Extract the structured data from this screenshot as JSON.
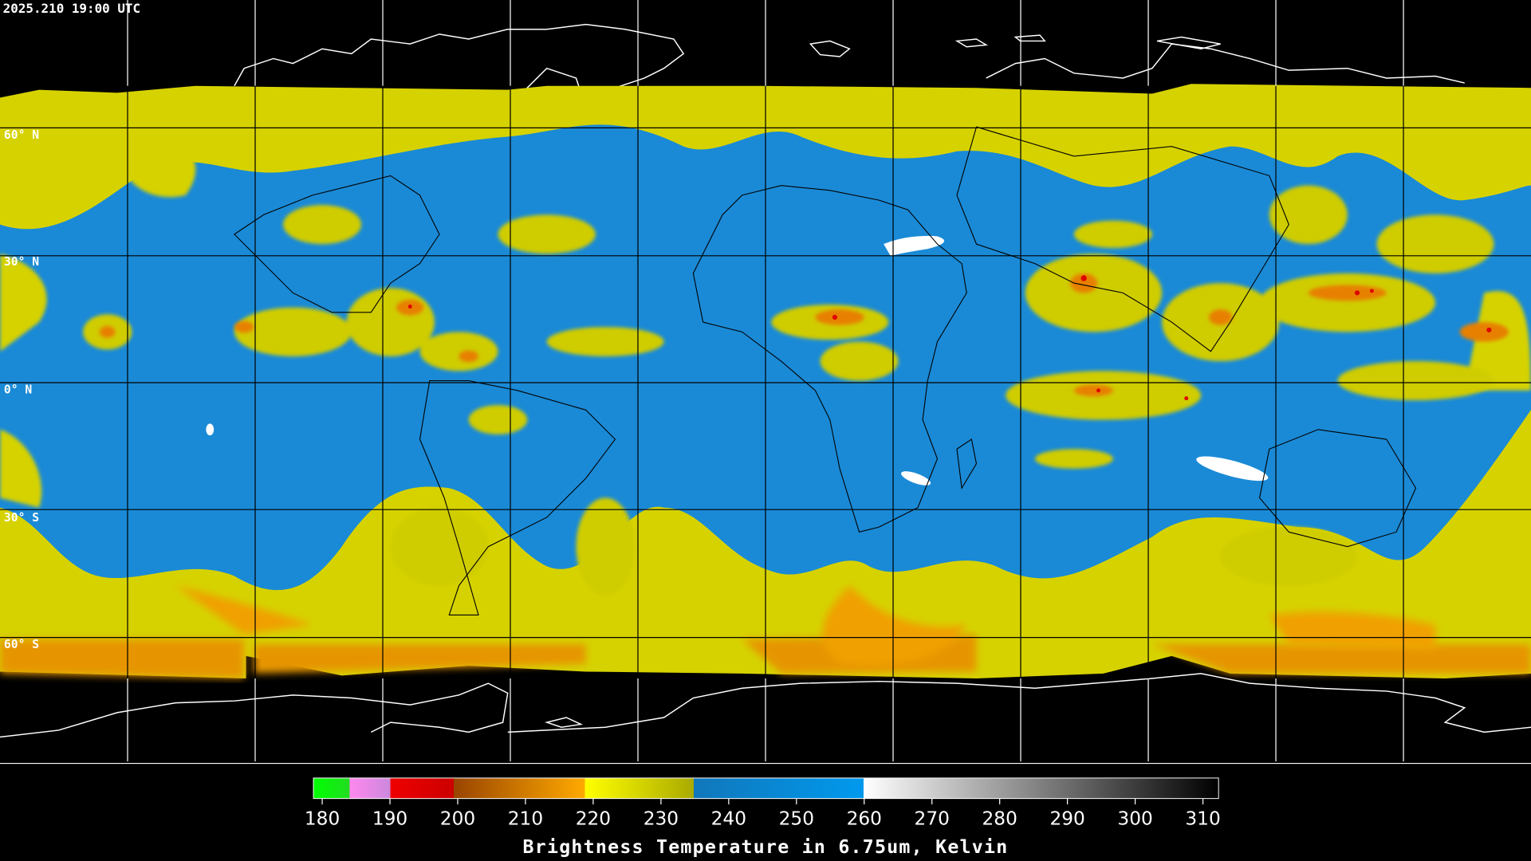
{
  "timestamp": "2025.210 19:00 UTC",
  "latitude_labels": [
    "60° N",
    "30° N",
    "0° N",
    "30° S",
    "60° S"
  ],
  "colorbar": {
    "range": [
      180,
      310
    ],
    "ticks": [
      180,
      190,
      200,
      210,
      220,
      230,
      240,
      250,
      260,
      270,
      280,
      290,
      300,
      310
    ],
    "title": "Brightness Temperature in 6.75um, Kelvin"
  }
}
